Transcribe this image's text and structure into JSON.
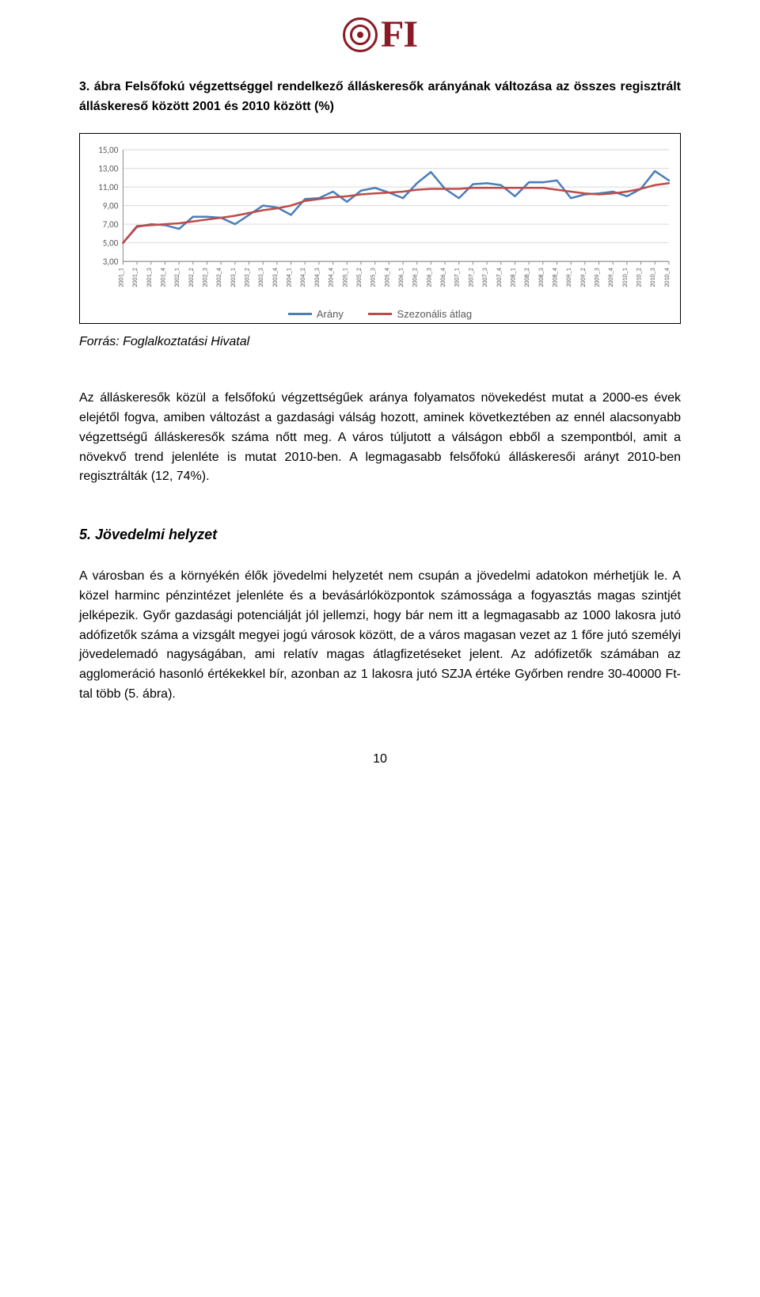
{
  "logo": {
    "text": "FI",
    "brand_color": "#8a1a23"
  },
  "figure": {
    "title": "3. ábra Felsőfokú végzettséggel rendelkező álláskeresők arányának változása az összes regisztrált álláskereső között 2001 és 2010 között (%)",
    "source": "Forrás: Foglalkoztatási Hivatal"
  },
  "chart": {
    "type": "line",
    "background_color": "#ffffff",
    "grid_color": "#d9d9d9",
    "axis_color": "#8c8c8c",
    "label_color": "#595959",
    "ylim": [
      3,
      15
    ],
    "ytick_step": 2,
    "yticks": [
      "3,00",
      "5,00",
      "7,00",
      "9,00",
      "11,00",
      "13,00",
      "15,00"
    ],
    "label_fontsize": 11,
    "xlabel_fontsize": 8,
    "xlabels": [
      "2001_1",
      "2001_2",
      "2001_3",
      "2001_4",
      "2002_1",
      "2002_2",
      "2002_3",
      "2002_4",
      "2003_1",
      "2003_2",
      "2003_3",
      "2003_4",
      "2004_1",
      "2004_2",
      "2004_3",
      "2004_4",
      "2005_1",
      "2005_2",
      "2005_3",
      "2005_4",
      "2006_1",
      "2006_2",
      "2006_3",
      "2006_4",
      "2007_1",
      "2007_2",
      "2007_3",
      "2007_4",
      "2008_1",
      "2008_2",
      "2008_3",
      "2008_4",
      "2009_1",
      "2009_2",
      "2009_3",
      "2009_4",
      "2010_1",
      "2010_2",
      "2010_3",
      "2010_4"
    ],
    "series": [
      {
        "name": "Arány",
        "color": "#4a7ebb",
        "line_width": 2.5,
        "values": [
          5.0,
          6.7,
          7.0,
          6.9,
          6.5,
          7.8,
          7.8,
          7.7,
          7.0,
          8.0,
          9.0,
          8.8,
          8.0,
          9.7,
          9.8,
          10.5,
          9.4,
          10.6,
          10.9,
          10.4,
          9.8,
          11.4,
          12.6,
          10.8,
          9.8,
          11.3,
          11.4,
          11.2,
          10.0,
          11.5,
          11.5,
          11.7,
          9.8,
          10.2,
          10.3,
          10.5,
          10.0,
          10.8,
          12.7,
          11.7
        ]
      },
      {
        "name": "Szezonális átlag",
        "color": "#be4b48",
        "line_width": 2.5,
        "values": [
          5.0,
          6.8,
          6.9,
          7.0,
          7.1,
          7.3,
          7.5,
          7.7,
          7.9,
          8.2,
          8.5,
          8.7,
          9.0,
          9.5,
          9.7,
          9.9,
          10.0,
          10.2,
          10.3,
          10.4,
          10.5,
          10.7,
          10.8,
          10.8,
          10.8,
          10.9,
          10.9,
          10.9,
          10.9,
          10.9,
          10.9,
          10.7,
          10.5,
          10.3,
          10.2,
          10.3,
          10.5,
          10.8,
          11.2,
          11.4
        ]
      }
    ],
    "legend_labels": {
      "arany": "Arány",
      "szezon": "Szezonális átlag"
    }
  },
  "body_paragraph_1": "Az álláskeresők közül a felsőfokú végzettségűek aránya folyamatos növekedést mutat a 2000-es évek elejétől fogva, amiben változást a gazdasági válság hozott, aminek következtében az ennél alacsonyabb végzettségű álláskeresők száma nőtt meg. A város túljutott a válságon ebből a szempontból, amit a növekvő trend jelenléte is mutat 2010-ben. A legmagasabb felsőfokú álláskeresői arányt 2010-ben regisztrálták (12, 74%).",
  "section_heading": "5. Jövedelmi helyzet",
  "body_paragraph_2": "A városban és a környékén élők jövedelmi helyzetét nem csupán a jövedelmi adatokon mérhetjük le. A közel harminc pénzintézet jelenléte és a bevásárlóközpontok számossága a fogyasztás magas szintjét jelképezik. Győr gazdasági potenciálját jól jellemzi, hogy bár nem itt a legmagasabb az 1000 lakosra jutó adófizetők száma a vizsgált megyei jogú városok között, de a város magasan vezet az 1 főre jutó személyi jövedelemadó nagyságában, ami relatív magas átlagfizetéseket jelent. Az adófizetők számában az agglomeráció hasonló értékekkel bír, azonban az 1 lakosra jutó SZJA értéke Győrben rendre 30-40000 Ft-tal több (5. ábra).",
  "page_number": "10"
}
